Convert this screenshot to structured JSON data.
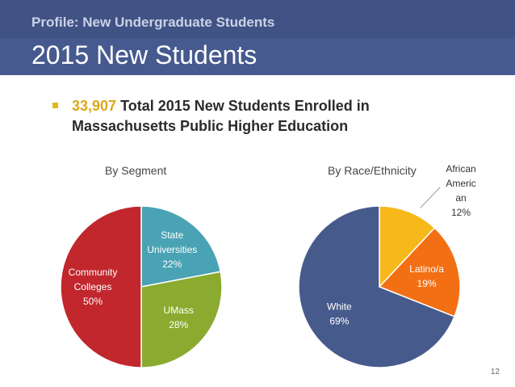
{
  "header": {
    "subtitle": "Profile: New Undergraduate Students",
    "title": "2015 New Students"
  },
  "bullet": {
    "number": "33,907",
    "text": "Total 2015 New Students Enrolled in Massachusetts Public Higher Education"
  },
  "colors": {
    "header_bg": "#465a8f",
    "bullet_accent": "#e0b81c"
  },
  "chart_data": [
    {
      "type": "pie",
      "title": "By Segment",
      "slices": [
        {
          "label_lines": [
            "State",
            "Universities",
            "22%"
          ],
          "value": 22,
          "color": "#4aa3b4"
        },
        {
          "label_lines": [
            "UMass",
            "28%"
          ],
          "value": 28,
          "color": "#8aab2f"
        },
        {
          "label_lines": [
            "Community",
            "Colleges",
            "50%"
          ],
          "value": 50,
          "color": "#c1272d"
        }
      ]
    },
    {
      "type": "pie",
      "title": "By Race/Ethnicity",
      "slices": [
        {
          "label_lines": [
            "African",
            "Americ",
            "an",
            "12%"
          ],
          "value": 12,
          "color": "#f6b81a"
        },
        {
          "label_lines": [
            "Latino/a",
            "19%"
          ],
          "value": 19,
          "color": "#f36f14"
        },
        {
          "label_lines": [
            "White",
            "69%"
          ],
          "value": 69,
          "color": "#475a8c"
        }
      ]
    }
  ],
  "page_number": "12"
}
